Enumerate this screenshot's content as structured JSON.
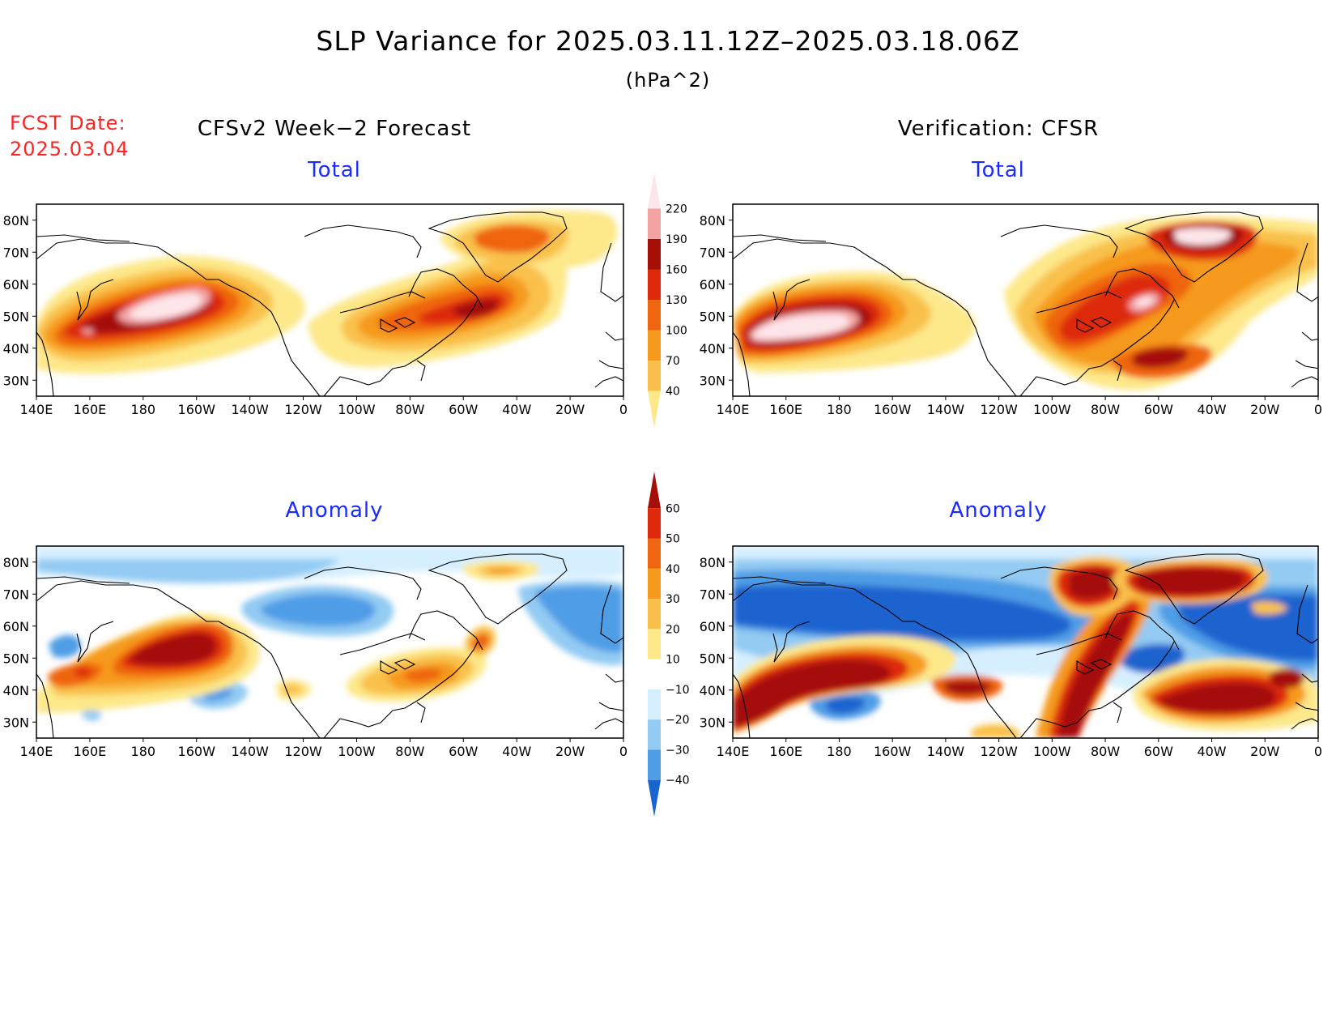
{
  "title": "SLP Variance for 2025.03.11.12Z–2025.03.18.06Z",
  "units": "(hPa^2)",
  "fcst_date_label": "FCST Date:",
  "fcst_date_value": "2025.03.04",
  "headers": {
    "left": "CFSv2 Week−2 Forecast",
    "right": "Verification: CFSR"
  },
  "panel_labels": {
    "total": "Total",
    "anomaly": "Anomaly"
  },
  "lon_ticks": [
    "140E",
    "160E",
    "180",
    "160W",
    "140W",
    "120W",
    "100W",
    "80W",
    "60W",
    "40W",
    "20W",
    "0"
  ],
  "lat_ticks": [
    "80N",
    "70N",
    "60N",
    "50N",
    "40N",
    "30N"
  ],
  "colorbar_total": {
    "levels": [
      "40",
      "70",
      "100",
      "130",
      "160",
      "190",
      "220"
    ],
    "colors": [
      "#fde88a",
      "#f9c14b",
      "#f59a1f",
      "#ef6510",
      "#dd2a0c",
      "#a50f08",
      "#f4a3a3",
      "#fde6ea"
    ]
  },
  "colorbar_anomaly": {
    "levels": [
      "60",
      "50",
      "40",
      "30",
      "20",
      "10",
      "−10",
      "−20",
      "−30",
      "−40"
    ],
    "colors": [
      "#a50f08",
      "#dd2a0c",
      "#ef6510",
      "#f59a1f",
      "#f9c14b",
      "#fde88a",
      "#ffffff",
      "#d6efff",
      "#93cbf3",
      "#4f9de6",
      "#1a64cf"
    ]
  },
  "chart_data": {
    "type": "map",
    "regions": [
      "forecast-total",
      "verification-total",
      "forecast-anomaly",
      "verification-anomaly"
    ]
  }
}
